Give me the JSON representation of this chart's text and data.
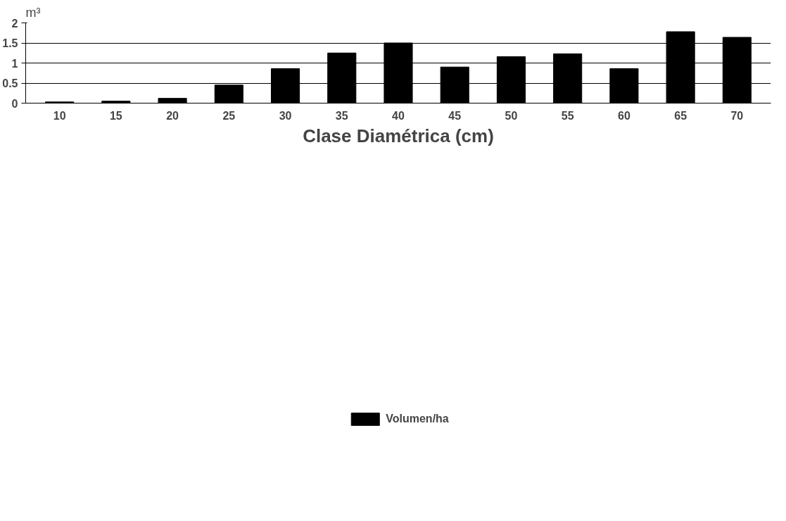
{
  "chart_data": {
    "type": "bar",
    "ylabel": "m³",
    "xlabel": "Clase Diamétrica (cm)",
    "categories": [
      "10",
      "15",
      "20",
      "25",
      "30",
      "35",
      "40",
      "45",
      "50",
      "55",
      "60",
      "65",
      "70"
    ],
    "series": [
      {
        "name": "Volumen/ha",
        "color": "#000000",
        "values": [
          0.03,
          0.05,
          0.12,
          0.45,
          0.86,
          1.25,
          1.5,
          0.9,
          1.16,
          1.23,
          0.86,
          1.78,
          1.64
        ]
      }
    ],
    "ylim": [
      0,
      2
    ],
    "yticks": [
      0,
      {
        "value": 0.5,
        "label": "0.5"
      },
      1,
      {
        "value": 1.5,
        "label": "1.5"
      },
      2
    ],
    "grid": "y",
    "legend": "bottom"
  }
}
